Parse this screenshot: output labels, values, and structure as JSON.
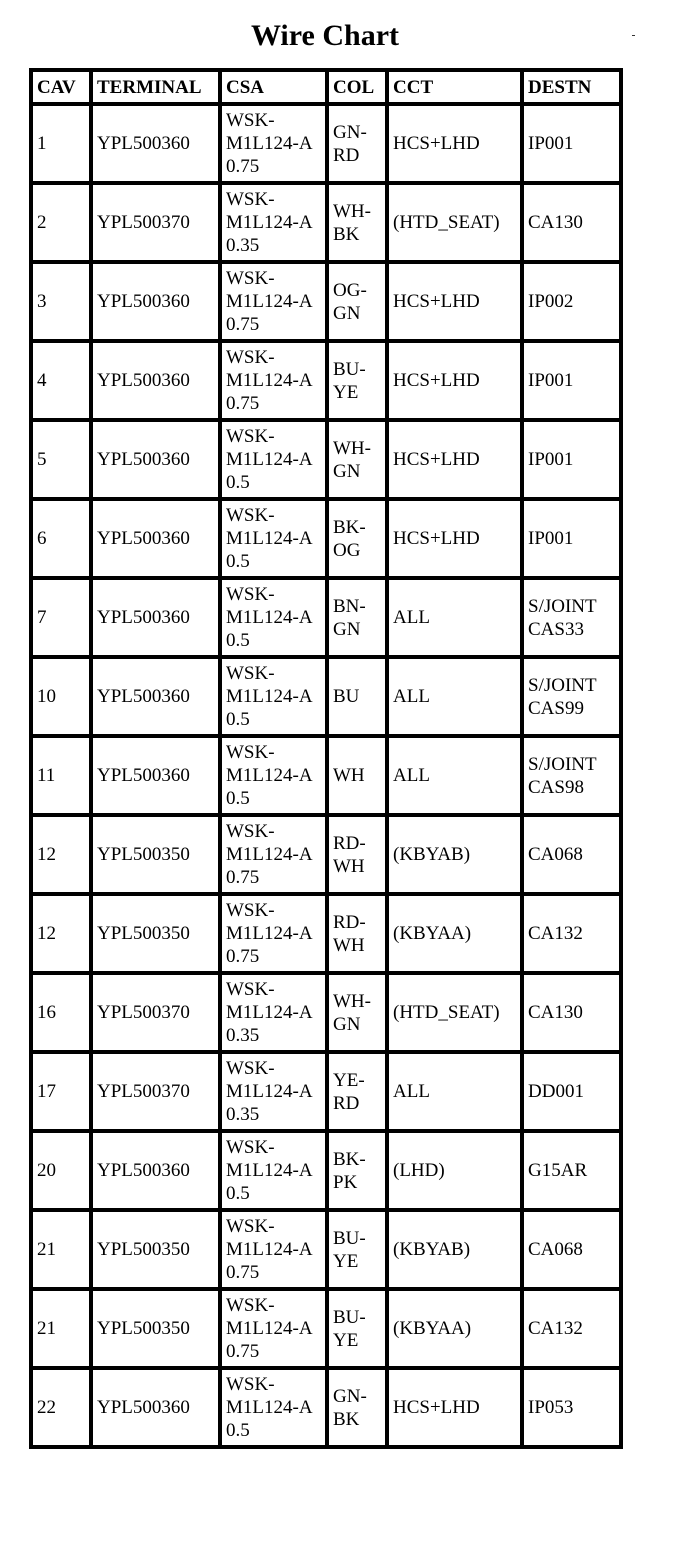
{
  "title": "Wire Chart",
  "table": {
    "headers": [
      "CAV",
      "TERMINAL",
      "CSA",
      "COL",
      "CCT",
      "DESTN"
    ],
    "rows": [
      [
        "1",
        "YPL500360",
        "WSK-M1L124-A 0.75",
        "GN-RD",
        "HCS+LHD",
        "IP001"
      ],
      [
        "2",
        "YPL500370",
        "WSK-M1L124-A 0.35",
        "WH-BK",
        "(HTD_SEAT)",
        "CA130"
      ],
      [
        "3",
        "YPL500360",
        "WSK-M1L124-A 0.75",
        "OG-GN",
        "HCS+LHD",
        "IP002"
      ],
      [
        "4",
        "YPL500360",
        "WSK-M1L124-A 0.75",
        "BU-YE",
        "HCS+LHD",
        "IP001"
      ],
      [
        "5",
        "YPL500360",
        "WSK-M1L124-A 0.5",
        "WH-GN",
        "HCS+LHD",
        "IP001"
      ],
      [
        "6",
        "YPL500360",
        "WSK-M1L124-A 0.5",
        "BK-OG",
        "HCS+LHD",
        "IP001"
      ],
      [
        "7",
        "YPL500360",
        "WSK-M1L124-A 0.5",
        "BN-GN",
        "ALL",
        "S/JOINT CAS33"
      ],
      [
        "10",
        "YPL500360",
        "WSK-M1L124-A 0.5",
        "BU",
        "ALL",
        "S/JOINT CAS99"
      ],
      [
        "11",
        "YPL500360",
        "WSK-M1L124-A 0.5",
        "WH",
        "ALL",
        "S/JOINT CAS98"
      ],
      [
        "12",
        "YPL500350",
        "WSK-M1L124-A 0.75",
        "RD-WH",
        "(KBYAB)",
        "CA068"
      ],
      [
        "12",
        "YPL500350",
        "WSK-M1L124-A 0.75",
        "RD-WH",
        "(KBYAA)",
        "CA132"
      ],
      [
        "16",
        "YPL500370",
        "WSK-M1L124-A 0.35",
        "WH-GN",
        "(HTD_SEAT)",
        "CA130"
      ],
      [
        "17",
        "YPL500370",
        "WSK-M1L124-A 0.35",
        "YE-RD",
        "ALL",
        "DD001"
      ],
      [
        "20",
        "YPL500360",
        "WSK-M1L124-A 0.5",
        "BK-PK",
        "(LHD)",
        "G15AR"
      ],
      [
        "21",
        "YPL500350",
        "WSK-M1L124-A 0.75",
        "BU-YE",
        "(KBYAB)",
        "CA068"
      ],
      [
        "21",
        "YPL500350",
        "WSK-M1L124-A 0.75",
        "BU-YE",
        "(KBYAA)",
        "CA132"
      ],
      [
        "22",
        "YPL500360",
        "WSK-M1L124-A 0.5",
        "GN-BK",
        "HCS+LHD",
        "IP053"
      ]
    ]
  }
}
